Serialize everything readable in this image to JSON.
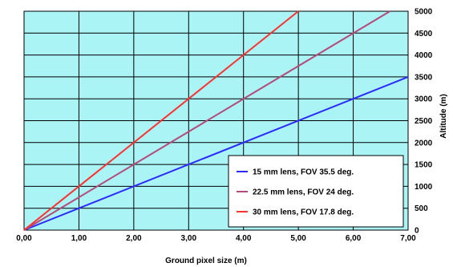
{
  "chart_data": {
    "type": "line",
    "xlabel": "Ground pixel size (m)",
    "ylabel": "Altitude (m)",
    "xlim": [
      0,
      7
    ],
    "ylim": [
      0,
      5000
    ],
    "x_ticks": [
      0,
      1,
      2,
      3,
      4,
      5,
      6,
      7
    ],
    "x_tick_labels": [
      "0,00",
      "1,00",
      "2,00",
      "3,00",
      "4,00",
      "5,00",
      "6,00",
      "7,00"
    ],
    "y_ticks": [
      0,
      500,
      1000,
      1500,
      2000,
      2500,
      3000,
      3500,
      4000,
      4500,
      5000
    ],
    "y_tick_labels": [
      "0",
      "500",
      "1000",
      "1500",
      "2000",
      "2500",
      "3000",
      "3500",
      "4000",
      "4500",
      "5000"
    ],
    "y_axis_position": "right",
    "grid": true,
    "legend_position": "bottom-right",
    "series": [
      {
        "name": "15 mm lens, FOV 35.5 deg.",
        "color": "#2b2bff",
        "x": [
          0,
          7
        ],
        "y": [
          0,
          3500
        ]
      },
      {
        "name": "22.5 mm lens, FOV 24 deg.",
        "color": "#b54a7a",
        "x": [
          0,
          6.67
        ],
        "y": [
          0,
          5000
        ]
      },
      {
        "name": "30 mm lens, FOV 17.8 deg.",
        "color": "#ff3030",
        "x": [
          0,
          5
        ],
        "y": [
          0,
          5000
        ]
      }
    ],
    "colors": {
      "plot_background": "#aaf4f6",
      "grid": "#000000",
      "legend_background": "#ffffff"
    }
  }
}
